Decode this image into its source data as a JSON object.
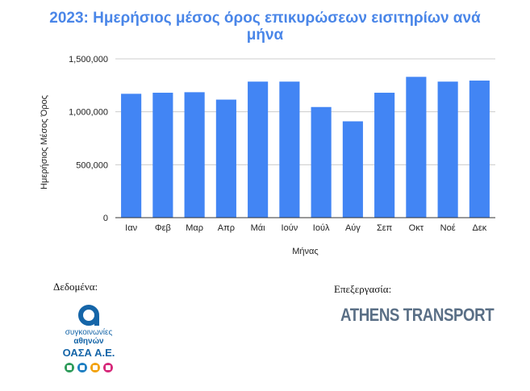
{
  "chart_data": {
    "type": "bar",
    "title": "2023: Ημερήσιος μέσος όρος επικυρώσεων εισιτηρίων ανά μήνα",
    "title_lines": [
      "2023: Ημερήσιος μέσος όρος επικυρώσεων εισιτηρίων ανά",
      "μήνα"
    ],
    "categories": [
      "Ιαν",
      "Φεβ",
      "Μαρ",
      "Απρ",
      "Μάι",
      "Ιούν",
      "Ιούλ",
      "Αύγ",
      "Σεπ",
      "Οκτ",
      "Νοέ",
      "Δεκ"
    ],
    "values": [
      1170000,
      1180000,
      1185000,
      1115000,
      1285000,
      1285000,
      1045000,
      910000,
      1180000,
      1330000,
      1285000,
      1295000
    ],
    "xlabel": "Μήνας",
    "ylabel": "Ημερήσιος Μέσος Όρος",
    "ylim": [
      0,
      1500000
    ],
    "yticks": [
      0,
      500000,
      1000000,
      1500000
    ],
    "ytick_labels": [
      "0",
      "500,000",
      "1,000,000",
      "1,500,000"
    ],
    "grid": true,
    "bar_color": "#4285f4",
    "title_color": "#4a86e8"
  },
  "credits": {
    "data_label": "Δεδομένα:",
    "processing_label": "Επεξεργασία:"
  },
  "logos": {
    "oasa": {
      "line1": "συγκοινωνίες",
      "line2": "αθηνών",
      "line3": "ΟΑΣΑ Α.Ε.",
      "dot_colors": [
        "#2e9b5a",
        "#1f7fc2",
        "#f2a20f",
        "#d6297a"
      ]
    },
    "athens_transport": {
      "text": "ATHENS TRANSPORT",
      "color": "#5a6f86"
    }
  }
}
